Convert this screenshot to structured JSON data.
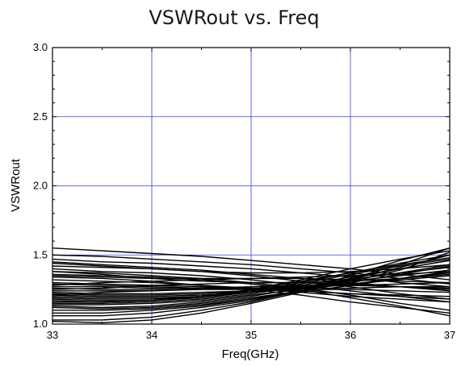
{
  "chart_data": {
    "type": "line",
    "title": "VSWRout vs. Freq",
    "xlabel": "Freq(GHz)",
    "ylabel": "VSWRout",
    "xlim": [
      33,
      37
    ],
    "ylim": [
      1.0,
      3.0
    ],
    "x_ticks": [
      "33",
      "34",
      "35",
      "36",
      "37"
    ],
    "y_ticks": [
      "1.0",
      "1.5",
      "2.0",
      "2.5",
      "3.0"
    ],
    "grid": true,
    "colors": {
      "grid": "#3344cc",
      "lines": "#000000",
      "frame": "#000000"
    },
    "x": [
      33,
      33.5,
      34,
      34.5,
      35,
      35.5,
      36,
      36.5,
      37
    ],
    "series": [
      {
        "values": [
          1.55,
          1.53,
          1.51,
          1.49,
          1.46,
          1.43,
          1.4,
          1.36,
          1.32
        ]
      },
      {
        "values": [
          1.5,
          1.49,
          1.47,
          1.45,
          1.43,
          1.4,
          1.37,
          1.33,
          1.29
        ]
      },
      {
        "values": [
          1.47,
          1.45,
          1.44,
          1.42,
          1.4,
          1.37,
          1.34,
          1.3,
          1.27
        ]
      },
      {
        "values": [
          1.45,
          1.43,
          1.41,
          1.39,
          1.36,
          1.33,
          1.3,
          1.27,
          1.24
        ]
      },
      {
        "values": [
          1.42,
          1.41,
          1.4,
          1.38,
          1.35,
          1.31,
          1.27,
          1.22,
          1.18
        ]
      },
      {
        "values": [
          1.4,
          1.38,
          1.37,
          1.35,
          1.32,
          1.28,
          1.24,
          1.2,
          1.16
        ]
      },
      {
        "values": [
          1.38,
          1.37,
          1.35,
          1.33,
          1.3,
          1.26,
          1.21,
          1.15,
          1.1
        ]
      },
      {
        "values": [
          1.36,
          1.35,
          1.34,
          1.32,
          1.29,
          1.25,
          1.19,
          1.13,
          1.06
        ]
      },
      {
        "values": [
          1.34,
          1.33,
          1.31,
          1.28,
          1.25,
          1.21,
          1.16,
          1.12,
          1.08
        ]
      },
      {
        "values": [
          1.32,
          1.31,
          1.3,
          1.28,
          1.26,
          1.23,
          1.2,
          1.18,
          1.16
        ]
      },
      {
        "values": [
          1.3,
          1.29,
          1.28,
          1.27,
          1.26,
          1.24,
          1.22,
          1.2,
          1.18
        ]
      },
      {
        "values": [
          1.29,
          1.28,
          1.27,
          1.26,
          1.25,
          1.24,
          1.22,
          1.21,
          1.2
        ]
      },
      {
        "values": [
          1.27,
          1.27,
          1.26,
          1.26,
          1.26,
          1.25,
          1.25,
          1.24,
          1.23
        ]
      },
      {
        "values": [
          1.26,
          1.25,
          1.25,
          1.25,
          1.25,
          1.26,
          1.26,
          1.27,
          1.27
        ]
      },
      {
        "values": [
          1.24,
          1.24,
          1.24,
          1.25,
          1.26,
          1.27,
          1.28,
          1.29,
          1.3
        ]
      },
      {
        "values": [
          1.23,
          1.22,
          1.22,
          1.23,
          1.24,
          1.26,
          1.29,
          1.32,
          1.35
        ]
      },
      {
        "values": [
          1.22,
          1.21,
          1.21,
          1.22,
          1.24,
          1.27,
          1.31,
          1.35,
          1.39
        ]
      },
      {
        "values": [
          1.21,
          1.2,
          1.2,
          1.21,
          1.23,
          1.27,
          1.32,
          1.37,
          1.43
        ]
      },
      {
        "values": [
          1.2,
          1.19,
          1.19,
          1.2,
          1.23,
          1.28,
          1.34,
          1.4,
          1.46
        ]
      },
      {
        "values": [
          1.19,
          1.18,
          1.18,
          1.2,
          1.24,
          1.3,
          1.37,
          1.44,
          1.5
        ]
      },
      {
        "values": [
          1.18,
          1.17,
          1.17,
          1.19,
          1.23,
          1.29,
          1.36,
          1.42,
          1.47
        ]
      },
      {
        "values": [
          1.17,
          1.16,
          1.17,
          1.2,
          1.25,
          1.32,
          1.4,
          1.47,
          1.53
        ]
      },
      {
        "values": [
          1.16,
          1.16,
          1.17,
          1.2,
          1.25,
          1.31,
          1.37,
          1.43,
          1.48
        ]
      },
      {
        "values": [
          1.15,
          1.15,
          1.16,
          1.18,
          1.22,
          1.27,
          1.32,
          1.37,
          1.41
        ]
      },
      {
        "values": [
          1.14,
          1.14,
          1.15,
          1.17,
          1.21,
          1.25,
          1.29,
          1.33,
          1.37
        ]
      },
      {
        "values": [
          1.13,
          1.12,
          1.13,
          1.16,
          1.2,
          1.26,
          1.33,
          1.4,
          1.46
        ]
      },
      {
        "values": [
          1.12,
          1.11,
          1.12,
          1.15,
          1.19,
          1.24,
          1.3,
          1.36,
          1.42
        ]
      },
      {
        "values": [
          1.1,
          1.1,
          1.11,
          1.14,
          1.18,
          1.23,
          1.28,
          1.33,
          1.38
        ]
      },
      {
        "values": [
          1.08,
          1.08,
          1.1,
          1.13,
          1.18,
          1.24,
          1.31,
          1.39,
          1.52
        ]
      },
      {
        "values": [
          1.06,
          1.06,
          1.08,
          1.12,
          1.17,
          1.24,
          1.33,
          1.43,
          1.55
        ]
      },
      {
        "values": [
          1.03,
          1.03,
          1.05,
          1.1,
          1.16,
          1.24,
          1.35,
          1.46,
          1.55
        ]
      },
      {
        "values": [
          1.02,
          1.01,
          1.03,
          1.08,
          1.15,
          1.23,
          1.32,
          1.41,
          1.5
        ]
      },
      {
        "values": [
          1.35,
          1.34,
          1.33,
          1.33,
          1.33,
          1.34,
          1.35,
          1.36,
          1.38
        ]
      },
      {
        "values": [
          1.28,
          1.3,
          1.31,
          1.32,
          1.33,
          1.33,
          1.32,
          1.31,
          1.3
        ]
      },
      {
        "values": [
          1.25,
          1.26,
          1.28,
          1.29,
          1.3,
          1.3,
          1.29,
          1.27,
          1.25
        ]
      },
      {
        "values": [
          1.21,
          1.23,
          1.24,
          1.26,
          1.27,
          1.28,
          1.28,
          1.27,
          1.26
        ]
      },
      {
        "values": [
          1.44,
          1.42,
          1.4,
          1.38,
          1.37,
          1.37,
          1.38,
          1.4,
          1.43
        ]
      },
      {
        "values": [
          1.38,
          1.36,
          1.33,
          1.31,
          1.3,
          1.3,
          1.31,
          1.33,
          1.36
        ]
      }
    ]
  }
}
